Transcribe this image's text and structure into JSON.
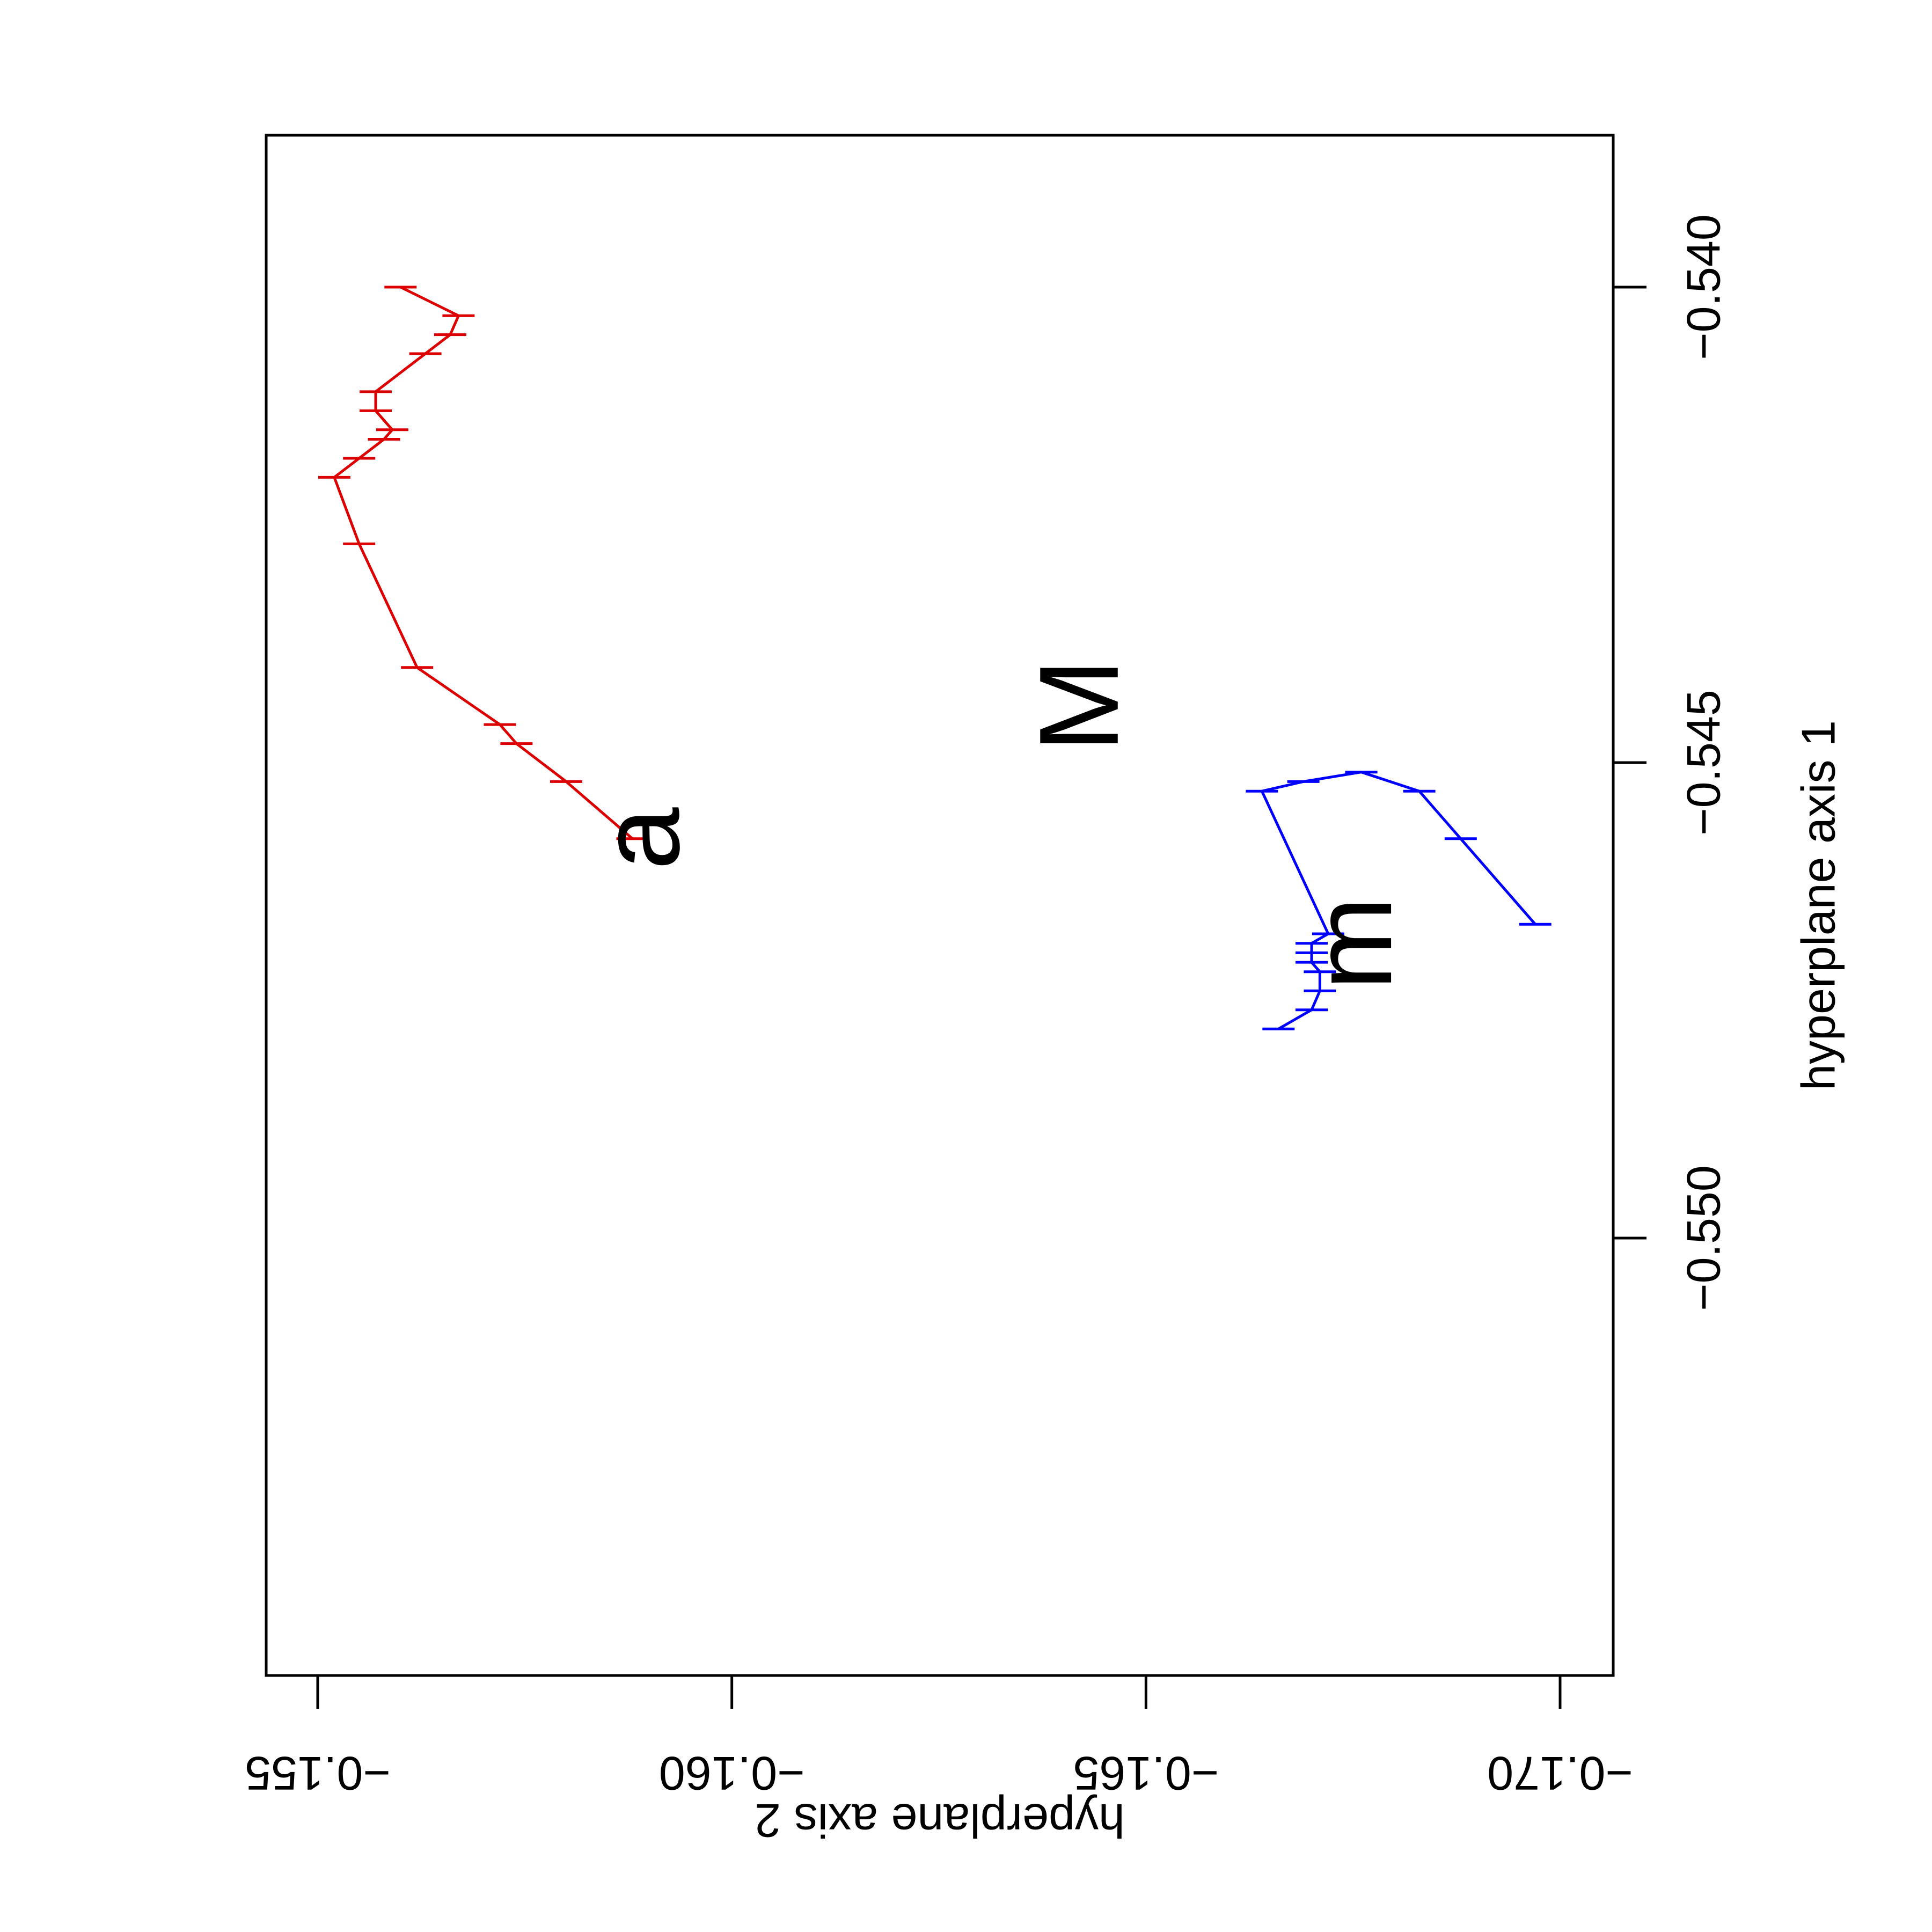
{
  "chart_data": {
    "type": "line",
    "rotated": "plot rotated 90 degrees clockwise; horizontal page axis = hyperplane axis 2 (text upside down), vertical page axis = hyperplane axis 1",
    "xlabel": "hyperplane axis 2",
    "ylabel": "hyperplane axis 1",
    "xlim": [
      -0.1546,
      -0.1706
    ],
    "ylim": [
      -0.5539,
      -0.5384
    ],
    "x_ticks": [
      -0.155,
      -0.16,
      -0.165,
      -0.17
    ],
    "x_tick_labels": [
      "−0.155",
      "−0.160",
      "−0.165",
      "−0.170"
    ],
    "y_ticks": [
      -0.55,
      -0.545,
      -0.54
    ],
    "y_tick_labels": [
      "−0.550",
      "−0.545",
      "−0.540"
    ],
    "grid": false,
    "legend": "none",
    "series": [
      {
        "color": "#dd0000",
        "points": [
          [
            -0.156,
            -0.54
          ],
          [
            -0.1567,
            -0.5403
          ],
          [
            -0.1566,
            -0.5405
          ],
          [
            -0.1563,
            -0.5407
          ],
          [
            -0.1557,
            -0.5411
          ],
          [
            -0.1557,
            -0.5413
          ],
          [
            -0.1559,
            -0.5415
          ],
          [
            -0.1558,
            -0.5416
          ],
          [
            -0.1555,
            -0.5418
          ],
          [
            -0.1552,
            -0.542
          ],
          [
            -0.1555,
            -0.5427
          ],
          [
            -0.1562,
            -0.544
          ],
          [
            -0.1572,
            -0.5446
          ],
          [
            -0.1574,
            -0.5448
          ],
          [
            -0.158,
            -0.5452
          ],
          [
            -0.1588,
            -0.5458
          ]
        ],
        "label": "a",
        "label_position": [
          -0.159,
          -0.5458
        ]
      },
      {
        "color": "#0000ff",
        "points": [
          [
            -0.1697,
            -0.5467
          ],
          [
            -0.1688,
            -0.5458
          ],
          [
            -0.1683,
            -0.5453
          ],
          [
            -0.1676,
            -0.5451
          ],
          [
            -0.1669,
            -0.5452
          ],
          [
            -0.1664,
            -0.5453
          ],
          [
            -0.1672,
            -0.5468
          ],
          [
            -0.167,
            -0.5469
          ],
          [
            -0.167,
            -0.547
          ],
          [
            -0.167,
            -0.5471
          ],
          [
            -0.1671,
            -0.5472
          ],
          [
            -0.1671,
            -0.5474
          ],
          [
            -0.167,
            -0.5476
          ],
          [
            -0.1666,
            -0.5478
          ]
        ],
        "label": "m",
        "label_position": [
          -0.1676,
          -0.5469
        ]
      }
    ],
    "annotations": [
      {
        "text": "M",
        "position": [
          -0.1643,
          -0.5444
        ]
      }
    ]
  }
}
